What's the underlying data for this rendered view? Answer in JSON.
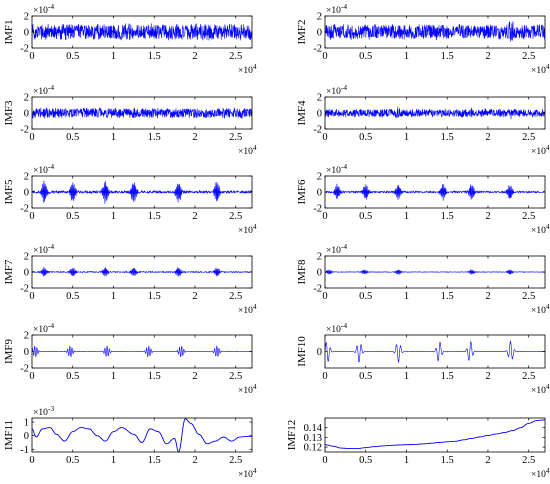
{
  "figure": {
    "background": "#ffffff",
    "line_color": "#0000ff",
    "x_multiplier_label": "×10^4"
  },
  "chart_data": [
    {
      "type": "line",
      "ylabel": "IMF1",
      "exponent_label": "×10^-4",
      "xlim": [
        0,
        27000
      ],
      "ylim": [
        -2,
        2
      ],
      "xticks": [
        "0",
        "0.5",
        "1",
        "1.5",
        "2",
        "2.5"
      ],
      "yticks": [
        "-2",
        "0",
        "2"
      ],
      "x_scale": 10000,
      "series": [
        {
          "style": "noise",
          "amplitude": 1.1,
          "bursts": [],
          "note_markers": []
        }
      ]
    },
    {
      "type": "line",
      "ylabel": "IMF2",
      "exponent_label": "×10^-4",
      "xlim": [
        0,
        27000
      ],
      "ylim": [
        -2,
        2
      ],
      "xticks": [
        "0",
        "0.5",
        "1",
        "1.5",
        "2",
        "2.5"
      ],
      "yticks": [
        "-2",
        "0",
        "2"
      ],
      "x_scale": 10000,
      "series": [
        {
          "style": "noise",
          "amplitude": 1.0,
          "bursts": [
            22800
          ],
          "note_markers": []
        }
      ]
    },
    {
      "type": "line",
      "ylabel": "IMF3",
      "exponent_label": "×10^-4",
      "xlim": [
        0,
        27000
      ],
      "ylim": [
        -2,
        2
      ],
      "xticks": [
        "0",
        "0.5",
        "1",
        "1.5",
        "2",
        "2.5"
      ],
      "yticks": [
        "-2",
        "0",
        "2"
      ],
      "x_scale": 10000,
      "series": [
        {
          "style": "noise",
          "amplitude": 0.7,
          "bursts": [],
          "note_markers": []
        }
      ]
    },
    {
      "type": "line",
      "ylabel": "IMF4",
      "exponent_label": "×10^-4",
      "xlim": [
        0,
        27000
      ],
      "ylim": [
        -2,
        2
      ],
      "xticks": [
        "0",
        "0.5",
        "1",
        "1.5",
        "2",
        "2.5"
      ],
      "yticks": [
        "-2",
        "0",
        "2"
      ],
      "x_scale": 10000,
      "series": [
        {
          "style": "noise",
          "amplitude": 0.55,
          "bursts": [
            9000,
            18000,
            22800
          ],
          "note_markers": []
        }
      ]
    },
    {
      "type": "line",
      "ylabel": "IMF5",
      "exponent_label": "×10^-4",
      "xlim": [
        0,
        27000
      ],
      "ylim": [
        -2,
        2
      ],
      "xticks": [
        "0",
        "0.5",
        "1",
        "1.5",
        "2",
        "2.5"
      ],
      "yticks": [
        "-2",
        "0",
        "2"
      ],
      "x_scale": 10000,
      "series": [
        {
          "style": "bursty",
          "amplitude": 0.35,
          "bursts": [
            1500,
            5000,
            9000,
            12500,
            18000,
            22700
          ],
          "note_markers": []
        }
      ]
    },
    {
      "type": "line",
      "ylabel": "IMF6",
      "exponent_label": "×10^-4",
      "xlim": [
        0,
        27000
      ],
      "ylim": [
        -2,
        2
      ],
      "xticks": [
        "0",
        "0.5",
        "1",
        "1.5",
        "2",
        "2.5"
      ],
      "yticks": [
        "-2",
        "0",
        "2"
      ],
      "x_scale": 10000,
      "series": [
        {
          "style": "bursty",
          "amplitude": 0.25,
          "bursts": [
            1500,
            5000,
            9000,
            14500,
            18000,
            22700
          ],
          "note_markers": []
        }
      ]
    },
    {
      "type": "line",
      "ylabel": "IMF7",
      "exponent_label": "×10^-4",
      "xlim": [
        0,
        27000
      ],
      "ylim": [
        -2,
        2
      ],
      "xticks": [
        "0",
        "0.5",
        "1",
        "1.5",
        "2",
        "2.5"
      ],
      "yticks": [
        "-2",
        "0",
        "2"
      ],
      "x_scale": 10000,
      "series": [
        {
          "style": "bursty",
          "amplitude": 0.15,
          "bursts": [
            1500,
            5000,
            9000,
            12500,
            18000,
            22700
          ],
          "note_markers": []
        }
      ]
    },
    {
      "type": "line",
      "ylabel": "IMF8",
      "exponent_label": "×10^-4",
      "xlim": [
        0,
        27000
      ],
      "ylim": [
        -2,
        2
      ],
      "xticks": [
        "0",
        "0.5",
        "1",
        "1.5",
        "2",
        "2.5"
      ],
      "yticks": [
        "-2",
        "0",
        "2"
      ],
      "x_scale": 10000,
      "series": [
        {
          "style": "bursty",
          "amplitude": 0.08,
          "bursts": [
            500,
            4800,
            9000,
            18000,
            22700
          ],
          "note_markers": []
        }
      ]
    },
    {
      "type": "line",
      "ylabel": "IMF9",
      "exponent_label": "×10^-4",
      "xlim": [
        0,
        27000
      ],
      "ylim": [
        -2,
        2
      ],
      "xticks": [
        "0",
        "0.5",
        "1",
        "1.5",
        "2",
        "2.5"
      ],
      "yticks": [
        "-2",
        "0",
        "2"
      ],
      "x_scale": 10000,
      "series": [
        {
          "style": "wavelets",
          "amplitude": 0.03,
          "bursts": [
            400,
            4700,
            9200,
            14300,
            18300,
            22700
          ],
          "note_markers": []
        }
      ]
    },
    {
      "type": "line",
      "ylabel": "IMF10",
      "exponent_label": "×10^-4",
      "xlim": [
        0,
        27000
      ],
      "ylim": [
        -1,
        1
      ],
      "xticks": [
        "0",
        "0.5",
        "1",
        "1.5",
        "2",
        "2.5"
      ],
      "yticks": [
        "0"
      ],
      "x_scale": 10000,
      "series": [
        {
          "style": "wavelets_low",
          "amplitude": 0.02,
          "bursts": [
            300,
            4200,
            9000,
            14000,
            17800,
            22800
          ],
          "note_markers": []
        }
      ]
    },
    {
      "type": "line",
      "ylabel": "IMF11",
      "exponent_label": "×10^-3",
      "xlim": [
        0,
        27000
      ],
      "ylim": [
        -1.2,
        1.3
      ],
      "xticks": [
        "0",
        "0.5",
        "1",
        "1.5",
        "2",
        "2.5"
      ],
      "yticks": [
        "-1",
        "0",
        "1"
      ],
      "x_scale": 10000,
      "series": [
        {
          "style": "points",
          "x": [
            0,
            500,
            1300,
            2200,
            3000,
            4000,
            5000,
            6000,
            7000,
            8000,
            9000,
            10000,
            11000,
            12500,
            13500,
            14500,
            15500,
            16500,
            17500,
            18000,
            18800,
            19500,
            20500,
            21500,
            22500,
            23500,
            24500,
            25500,
            26500,
            27000
          ],
          "y": [
            0.5,
            -0.1,
            0.5,
            0.6,
            0.1,
            -0.4,
            0.3,
            0.6,
            0.5,
            0.0,
            -0.4,
            0.3,
            0.6,
            0.1,
            -0.5,
            0.5,
            0.3,
            -0.6,
            -0.2,
            -1.2,
            1.25,
            0.9,
            0.1,
            -0.6,
            -0.4,
            -0.1,
            -0.4,
            -0.1,
            -0.05,
            -0.05
          ]
        }
      ]
    },
    {
      "type": "line",
      "ylabel": "IMF12",
      "exponent_label": "",
      "xlim": [
        0,
        27000
      ],
      "ylim": [
        0.115,
        0.15
      ],
      "xticks": [
        "0",
        "0.5",
        "1",
        "1.5",
        "2",
        "2.5"
      ],
      "yticks": [
        "0.12",
        "0.13",
        "0.14"
      ],
      "x_scale": 10000,
      "series": [
        {
          "style": "points",
          "x": [
            0,
            1000,
            2000,
            3000,
            4000,
            5000,
            6000,
            7000,
            8000,
            9000,
            10000,
            11000,
            12000,
            13000,
            14000,
            15000,
            16000,
            17000,
            18000,
            19000,
            20000,
            21000,
            22000,
            23000,
            24000,
            25000,
            26000,
            27000
          ],
          "y": [
            0.1225,
            0.121,
            0.119,
            0.1185,
            0.1185,
            0.1195,
            0.1205,
            0.1212,
            0.1218,
            0.1222,
            0.1225,
            0.1228,
            0.1233,
            0.124,
            0.1248,
            0.1255,
            0.126,
            0.1275,
            0.129,
            0.1305,
            0.132,
            0.1335,
            0.135,
            0.137,
            0.14,
            0.1445,
            0.1475,
            0.148
          ]
        }
      ]
    }
  ]
}
